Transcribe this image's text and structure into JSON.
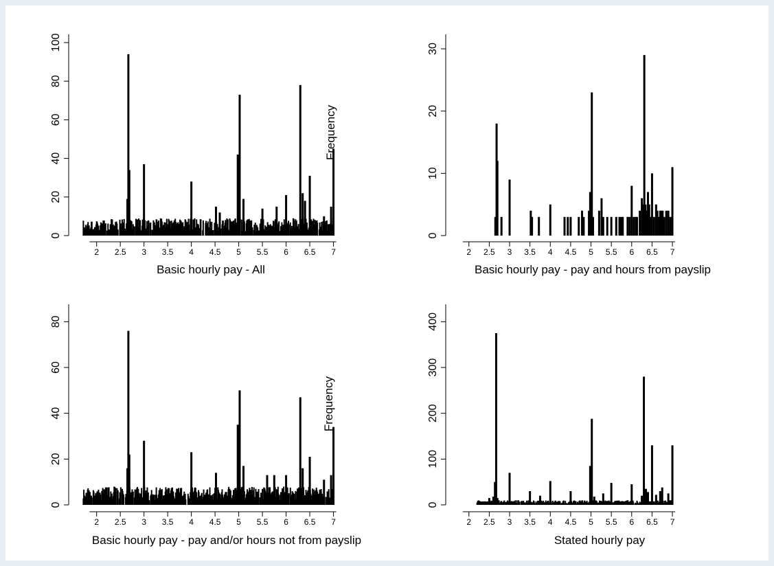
{
  "figure": {
    "background": "#e8eef2",
    "panel_background": "#ffffff",
    "bar_color": "#000000",
    "layout": "2x2 histogram grid"
  },
  "chart_data": [
    {
      "type": "bar",
      "xlabel": "Basic hourly pay - All",
      "ylabel": "Frequency",
      "xlim": [
        1.7,
        7.05
      ],
      "ylim": [
        0,
        100
      ],
      "xticks": [
        "2",
        "2.5",
        "3",
        "3.5",
        "4",
        "4.5",
        "5",
        "5.5",
        "6",
        "6.5",
        "7"
      ],
      "yticks": [
        "0",
        "20",
        "40",
        "60",
        "80",
        "100"
      ],
      "spikes": [
        {
          "x": 2.65,
          "y": 19
        },
        {
          "x": 2.67,
          "y": 94
        },
        {
          "x": 2.69,
          "y": 34
        },
        {
          "x": 3.0,
          "y": 37
        },
        {
          "x": 4.0,
          "y": 28
        },
        {
          "x": 4.52,
          "y": 15
        },
        {
          "x": 4.6,
          "y": 12
        },
        {
          "x": 4.98,
          "y": 42
        },
        {
          "x": 5.02,
          "y": 73
        },
        {
          "x": 5.1,
          "y": 19
        },
        {
          "x": 5.5,
          "y": 14
        },
        {
          "x": 5.8,
          "y": 15
        },
        {
          "x": 6.0,
          "y": 21
        },
        {
          "x": 6.3,
          "y": 78
        },
        {
          "x": 6.35,
          "y": 22
        },
        {
          "x": 6.4,
          "y": 18
        },
        {
          "x": 6.5,
          "y": 31
        },
        {
          "x": 6.8,
          "y": 10
        },
        {
          "x": 6.95,
          "y": 15
        },
        {
          "x": 7.0,
          "y": 45
        }
      ],
      "background_bars": {
        "x_range": [
          1.72,
          7.0
        ],
        "typical_height": [
          2,
          9
        ]
      }
    },
    {
      "type": "bar",
      "xlabel": "Basic hourly pay - pay and hours from payslip",
      "ylabel": "Frequency",
      "xlim": [
        1.7,
        7.05
      ],
      "ylim": [
        0,
        31
      ],
      "xticks": [
        "2",
        "2.5",
        "3",
        "3.5",
        "4",
        "4.5",
        "5",
        "5.5",
        "6",
        "6.5",
        "7"
      ],
      "yticks": [
        "0",
        "10",
        "20",
        "30"
      ],
      "spikes": [
        {
          "x": 2.65,
          "y": 3
        },
        {
          "x": 2.68,
          "y": 18
        },
        {
          "x": 2.7,
          "y": 12
        },
        {
          "x": 2.8,
          "y": 3
        },
        {
          "x": 3.0,
          "y": 9
        },
        {
          "x": 3.52,
          "y": 4
        },
        {
          "x": 3.55,
          "y": 3
        },
        {
          "x": 3.72,
          "y": 3
        },
        {
          "x": 4.0,
          "y": 5
        },
        {
          "x": 4.35,
          "y": 3
        },
        {
          "x": 4.43,
          "y": 3
        },
        {
          "x": 4.5,
          "y": 3
        },
        {
          "x": 4.7,
          "y": 3
        },
        {
          "x": 4.78,
          "y": 4
        },
        {
          "x": 4.82,
          "y": 3
        },
        {
          "x": 4.95,
          "y": 4
        },
        {
          "x": 4.98,
          "y": 7
        },
        {
          "x": 5.02,
          "y": 23
        },
        {
          "x": 5.05,
          "y": 3
        },
        {
          "x": 5.2,
          "y": 4
        },
        {
          "x": 5.26,
          "y": 6
        },
        {
          "x": 5.3,
          "y": 3
        },
        {
          "x": 5.4,
          "y": 3
        },
        {
          "x": 5.5,
          "y": 3
        },
        {
          "x": 5.62,
          "y": 3
        },
        {
          "x": 5.7,
          "y": 3
        },
        {
          "x": 5.75,
          "y": 3
        },
        {
          "x": 5.78,
          "y": 3
        },
        {
          "x": 5.9,
          "y": 3
        },
        {
          "x": 5.95,
          "y": 3
        },
        {
          "x": 6.0,
          "y": 8
        },
        {
          "x": 6.05,
          "y": 3
        },
        {
          "x": 6.1,
          "y": 3
        },
        {
          "x": 6.13,
          "y": 3
        },
        {
          "x": 6.2,
          "y": 4
        },
        {
          "x": 6.25,
          "y": 6
        },
        {
          "x": 6.28,
          "y": 5
        },
        {
          "x": 6.31,
          "y": 29
        },
        {
          "x": 6.34,
          "y": 5
        },
        {
          "x": 6.38,
          "y": 4
        },
        {
          "x": 6.4,
          "y": 7
        },
        {
          "x": 6.43,
          "y": 5
        },
        {
          "x": 6.47,
          "y": 3
        },
        {
          "x": 6.5,
          "y": 10
        },
        {
          "x": 6.55,
          "y": 3
        },
        {
          "x": 6.6,
          "y": 5
        },
        {
          "x": 6.63,
          "y": 4
        },
        {
          "x": 6.66,
          "y": 3
        },
        {
          "x": 6.7,
          "y": 4
        },
        {
          "x": 6.73,
          "y": 4
        },
        {
          "x": 6.76,
          "y": 4
        },
        {
          "x": 6.8,
          "y": 3
        },
        {
          "x": 6.85,
          "y": 4
        },
        {
          "x": 6.9,
          "y": 4
        },
        {
          "x": 6.95,
          "y": 3
        },
        {
          "x": 7.0,
          "y": 11
        }
      ],
      "background_bars": null
    },
    {
      "type": "bar",
      "xlabel": "Basic hourly pay - pay and/or hours not from payslip",
      "ylabel": "Frequency",
      "xlim": [
        1.7,
        7.05
      ],
      "ylim": [
        0,
        84
      ],
      "xticks": [
        "2",
        "2.5",
        "3",
        "3.5",
        "4",
        "4.5",
        "5",
        "5.5",
        "6",
        "6.5",
        "7"
      ],
      "yticks": [
        "0",
        "20",
        "40",
        "60",
        "80"
      ],
      "spikes": [
        {
          "x": 2.65,
          "y": 16
        },
        {
          "x": 2.67,
          "y": 76
        },
        {
          "x": 2.69,
          "y": 22
        },
        {
          "x": 3.0,
          "y": 28
        },
        {
          "x": 4.0,
          "y": 23
        },
        {
          "x": 4.52,
          "y": 14
        },
        {
          "x": 4.98,
          "y": 35
        },
        {
          "x": 5.02,
          "y": 50
        },
        {
          "x": 5.1,
          "y": 17
        },
        {
          "x": 5.6,
          "y": 13
        },
        {
          "x": 5.75,
          "y": 13
        },
        {
          "x": 6.0,
          "y": 13
        },
        {
          "x": 6.3,
          "y": 47
        },
        {
          "x": 6.35,
          "y": 16
        },
        {
          "x": 6.5,
          "y": 21
        },
        {
          "x": 6.8,
          "y": 11
        },
        {
          "x": 6.95,
          "y": 13
        },
        {
          "x": 7.0,
          "y": 34
        }
      ],
      "background_bars": {
        "x_range": [
          1.72,
          7.0
        ],
        "typical_height": [
          2,
          8
        ]
      }
    },
    {
      "type": "bar",
      "xlabel": "Stated hourly pay",
      "ylabel": "Frequency",
      "xlim": [
        1.7,
        7.05
      ],
      "ylim": [
        0,
        420
      ],
      "xticks": [
        "2",
        "2.5",
        "3",
        "3.5",
        "4",
        "4.5",
        "5",
        "5.5",
        "6",
        "6.5",
        "7"
      ],
      "yticks": [
        "0",
        "100",
        "200",
        "300",
        "400"
      ],
      "spikes": [
        {
          "x": 2.5,
          "y": 15
        },
        {
          "x": 2.6,
          "y": 18
        },
        {
          "x": 2.64,
          "y": 50
        },
        {
          "x": 2.67,
          "y": 375
        },
        {
          "x": 2.7,
          "y": 15
        },
        {
          "x": 3.0,
          "y": 70
        },
        {
          "x": 3.5,
          "y": 30
        },
        {
          "x": 3.75,
          "y": 20
        },
        {
          "x": 4.0,
          "y": 52
        },
        {
          "x": 4.5,
          "y": 30
        },
        {
          "x": 4.98,
          "y": 85
        },
        {
          "x": 5.02,
          "y": 188
        },
        {
          "x": 5.08,
          "y": 18
        },
        {
          "x": 5.3,
          "y": 25
        },
        {
          "x": 5.5,
          "y": 48
        },
        {
          "x": 5.9,
          "y": 10
        },
        {
          "x": 6.0,
          "y": 45
        },
        {
          "x": 6.25,
          "y": 20
        },
        {
          "x": 6.3,
          "y": 280
        },
        {
          "x": 6.35,
          "y": 35
        },
        {
          "x": 6.4,
          "y": 28
        },
        {
          "x": 6.5,
          "y": 130
        },
        {
          "x": 6.6,
          "y": 22
        },
        {
          "x": 6.7,
          "y": 30
        },
        {
          "x": 6.75,
          "y": 38
        },
        {
          "x": 6.9,
          "y": 25
        },
        {
          "x": 6.95,
          "y": 10
        },
        {
          "x": 7.0,
          "y": 130
        }
      ],
      "background_bars": {
        "x_range": [
          2.2,
          7.0
        ],
        "typical_height": [
          2,
          10
        ]
      }
    }
  ],
  "panels_frame": [
    {
      "frequency_label_shown": true
    },
    {
      "frequency_label_shown": false
    },
    {
      "frequency_label_shown": true
    },
    {
      "frequency_label_shown": false
    }
  ]
}
